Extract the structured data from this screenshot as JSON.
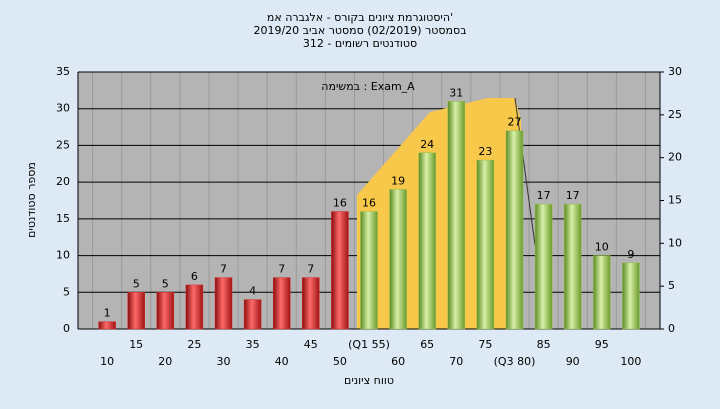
{
  "chart_data": {
    "type": "bar",
    "title": "היסטוגרמת ציונים בקורס - אלגברה אמ'",
    "subtitle": "בסמסטר  (02/2019)  סמסטר אביב 2019/20",
    "subtitle2": "סטודנטים רשומים - 312",
    "annotation": "במשימה : Exam_A",
    "y_label": "מספר סטודנטים",
    "x_label": "טווח ציונים",
    "categories": [
      "10",
      "15",
      "20",
      "25",
      "30",
      "35",
      "40",
      "45",
      "50",
      "(Q1 55)",
      "60",
      "65",
      "70",
      "75",
      "(Q3 80)",
      "85",
      "90",
      "95",
      "100"
    ],
    "values": [
      1,
      5,
      5,
      6,
      7,
      4,
      7,
      7,
      16,
      16,
      19,
      24,
      31,
      23,
      27,
      17,
      17,
      10,
      9
    ],
    "colors": [
      "#d92b2b",
      "#d92b2b",
      "#d92b2b",
      "#d92b2b",
      "#d92b2b",
      "#d92b2b",
      "#d92b2b",
      "#d92b2b",
      "#d92b2b",
      "#8fc04a",
      "#8fc04a",
      "#8fc04a",
      "#8fc04a",
      "#8fc04a",
      "#8fc04a",
      "#8fc04a",
      "#8fc04a",
      "#8fc04a",
      "#8fc04a"
    ],
    "ylim": [
      0,
      35
    ],
    "yticks": [
      0,
      5,
      10,
      15,
      20,
      25,
      30,
      35
    ],
    "y2lim": [
      0,
      30
    ],
    "y2ticks": [
      0,
      5,
      10,
      15,
      20,
      25,
      30
    ],
    "grid": true
  }
}
